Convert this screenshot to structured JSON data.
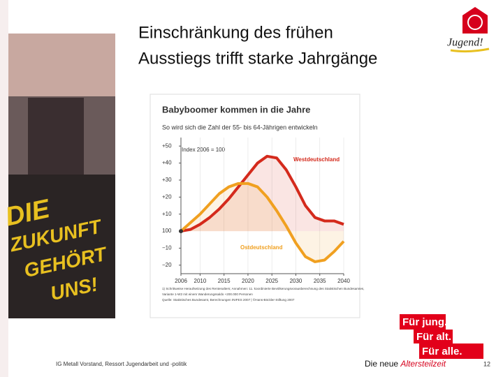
{
  "slide": {
    "heading": [
      "Einschränkung des frühen",
      "Ausstiegs trifft starke Jahrgänge"
    ],
    "logo_text": "Jugend!",
    "photo_text": [
      "DIE",
      "ZUKUNFT",
      "GEHÖRT",
      "UNS!"
    ],
    "badge": [
      "Für jung.",
      "Für alt.",
      "Für alle."
    ],
    "footer_left": "IG Metall Vorstand, Ressort Jugendarbeit und -politik",
    "footer_center": "Die neue ",
    "footer_center_highlight": "Altersteilzeit",
    "page_number": "12"
  },
  "chart_data": {
    "type": "line",
    "title": "Babyboomer kommen in die Jahre",
    "subtitle": "So wird sich die Zahl der 55- bis 64-Jährigen entwickeln",
    "annotation": "Index 2006 = 100",
    "footnote": [
      "1) Schrittweise Heraufsetzung des Rentenalters; Annahmen: 11. koordinierte Bevölkerungsvorausberechnung des Statistischen Bundesamtes,",
      "Variante 1-W2 mit einem Wanderungssaldo +200.000 Personen",
      "Quelle: Statistisches Bundesamt, Berechnungen INIFES 2007 | ©Hans-Böckler-Stiftung 2007"
    ],
    "x": [
      2006,
      2008,
      2010,
      2012,
      2014,
      2016,
      2018,
      2020,
      2022,
      2024,
      2026,
      2028,
      2030,
      2032,
      2034,
      2036,
      2038,
      2040
    ],
    "series": [
      {
        "name": "Westdeutschland",
        "color": "#d42a1c",
        "values": [
          0,
          1,
          4,
          8,
          13,
          19,
          26,
          33,
          40,
          44,
          43,
          36,
          26,
          15,
          8,
          6,
          6,
          4
        ]
      },
      {
        "name": "Ostdeutschland",
        "color": "#f0a020",
        "values": [
          0,
          5,
          10,
          16,
          22,
          26,
          28,
          28,
          26,
          20,
          12,
          3,
          -7,
          -15,
          -18,
          -17,
          -12,
          -6
        ]
      }
    ],
    "xlim": [
      2006,
      2040
    ],
    "xticks": [
      2006,
      2010,
      2015,
      2020,
      2025,
      2030,
      2035,
      2040
    ],
    "ylim": [
      -25,
      55
    ],
    "yticks": [
      {
        "value": 50,
        "label": "+50"
      },
      {
        "value": 40,
        "label": "+40"
      },
      {
        "value": 30,
        "label": "+30"
      },
      {
        "value": 20,
        "label": "+20"
      },
      {
        "value": 10,
        "label": "+10"
      },
      {
        "value": 0,
        "label": "100"
      },
      {
        "value": -10,
        "label": "−10"
      },
      {
        "value": -20,
        "label": "−20"
      }
    ],
    "grid": true
  }
}
